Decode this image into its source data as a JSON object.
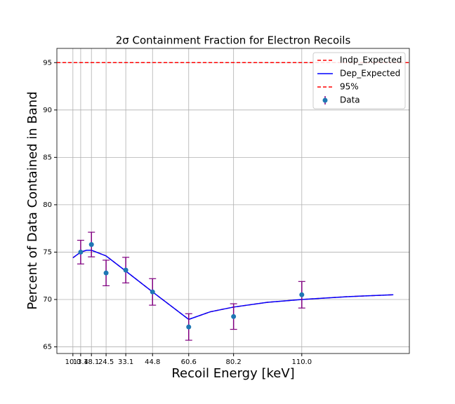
{
  "chart_data": {
    "type": "line",
    "title": "2σ Containment Fraction for Electron Recoils",
    "x_label": "Recoil Energy [keV]",
    "y_label": "Percent of Data Contained in Band",
    "xlim": [
      3,
      157
    ],
    "ylim": [
      64.3,
      96.5
    ],
    "xticks": [
      {
        "value": 10,
        "label": "10.0"
      },
      13.4,
      18.1,
      24.5,
      33.1,
      44.8,
      60.6,
      80.2,
      {
        "value": 110,
        "label": "110.0"
      }
    ],
    "yticks": [
      65,
      70,
      75,
      80,
      85,
      90,
      95
    ],
    "grid": true,
    "legend": "upper right",
    "series": [
      {
        "name": "Indp_Expected",
        "color": "#ff0000",
        "style": "dashed",
        "x": [
          10,
          13.4,
          16,
          18.1,
          24.5,
          33.1,
          44.8,
          60.6,
          70,
          80.2,
          95,
          110,
          130,
          150
        ],
        "values": [
          74.4,
          75.0,
          75.2,
          75.2,
          74.6,
          73.0,
          70.8,
          67.9,
          68.7,
          69.2,
          69.7,
          70.0,
          70.3,
          70.5
        ]
      },
      {
        "name": "Dep_Expected",
        "color": "#0000ff",
        "style": "solid",
        "x": [
          10,
          13.4,
          16,
          18.1,
          24.5,
          33.1,
          44.8,
          60.6,
          70,
          80.2,
          95,
          110,
          130,
          150
        ],
        "values": [
          74.4,
          75.0,
          75.2,
          75.2,
          74.6,
          73.0,
          70.8,
          67.9,
          68.7,
          69.2,
          69.7,
          70.0,
          70.3,
          70.5
        ]
      },
      {
        "name": "95%",
        "color": "#ff0000",
        "style": "hline",
        "value": 95
      },
      {
        "name": "Data",
        "color": "#1f77b4",
        "error_color": "#800080",
        "style": "errorbar",
        "x": [
          13.4,
          18.1,
          24.5,
          33.1,
          44.8,
          60.6,
          80.2,
          110
        ],
        "values": [
          75.0,
          75.8,
          72.8,
          73.1,
          70.8,
          67.1,
          68.2,
          70.5
        ],
        "errors": [
          1.25,
          1.3,
          1.35,
          1.35,
          1.4,
          1.4,
          1.35,
          1.4
        ]
      }
    ]
  }
}
